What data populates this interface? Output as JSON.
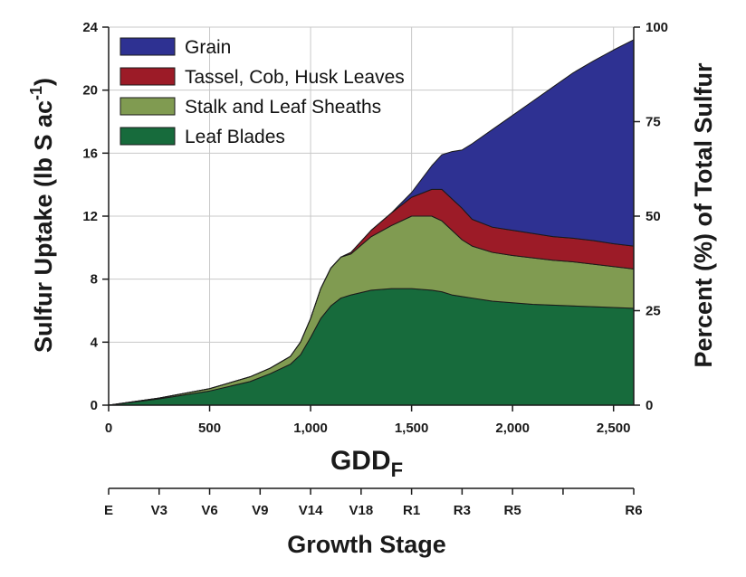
{
  "chart_data": {
    "type": "area",
    "stacked": true,
    "xlabel_main": "GDD",
    "xlabel_sub": "F",
    "ylabel_left_main": "Sulfur Uptake (lb S ac",
    "ylabel_left_sup": "-1",
    "ylabel_left_close": ")",
    "ylabel_right": "Percent (%) of Total Sulfur",
    "xlim": [
      0,
      2600
    ],
    "ylim_left": [
      0,
      24
    ],
    "ylim_right": [
      0,
      100
    ],
    "x_ticks": [
      0,
      500,
      1000,
      1500,
      2000,
      2500
    ],
    "x_tick_labels": [
      "0",
      "500",
      "1,000",
      "1,500",
      "2,000",
      "2,500"
    ],
    "y_left_ticks": [
      0,
      4,
      8,
      12,
      16,
      20,
      24
    ],
    "y_left_tick_labels": [
      "0",
      "4",
      "8",
      "12",
      "16",
      "20",
      "24"
    ],
    "y_right_ticks": [
      0,
      25,
      50,
      75,
      100
    ],
    "y_right_tick_labels": [
      "0",
      "25",
      "50",
      "75",
      "100"
    ],
    "growth_stage_title": "Growth Stage",
    "growth_stages": [
      {
        "label": "E",
        "gdd": 0
      },
      {
        "label": "V3",
        "gdd": 250
      },
      {
        "label": "V6",
        "gdd": 500
      },
      {
        "label": "V9",
        "gdd": 750
      },
      {
        "label": "V14",
        "gdd": 1000
      },
      {
        "label": "V18",
        "gdd": 1250
      },
      {
        "label": "R1",
        "gdd": 1500
      },
      {
        "label": "R3",
        "gdd": 1750
      },
      {
        "label": "R5",
        "gdd": 2000
      },
      {
        "label": "",
        "gdd": 2250
      },
      {
        "label": "R6",
        "gdd": 2600
      }
    ],
    "x": [
      0,
      250,
      500,
      700,
      800,
      900,
      950,
      1000,
      1050,
      1100,
      1150,
      1200,
      1300,
      1400,
      1500,
      1600,
      1650,
      1700,
      1750,
      1800,
      1900,
      2000,
      2100,
      2200,
      2300,
      2400,
      2500,
      2600
    ],
    "series": [
      {
        "name": "Leaf Blades",
        "color": "#176b3c",
        "values": [
          0,
          0.4,
          0.9,
          1.5,
          2.0,
          2.6,
          3.2,
          4.3,
          5.5,
          6.3,
          6.8,
          7.0,
          7.3,
          7.4,
          7.4,
          7.3,
          7.2,
          7.0,
          6.9,
          6.8,
          6.6,
          6.5,
          6.4,
          6.35,
          6.3,
          6.25,
          6.2,
          6.15
        ]
      },
      {
        "name": "Stalk and Leaf Sheaths",
        "color": "#809b51",
        "values": [
          0,
          0.05,
          0.15,
          0.3,
          0.35,
          0.5,
          0.8,
          1.2,
          1.9,
          2.4,
          2.6,
          2.6,
          3.4,
          4.0,
          4.6,
          4.7,
          4.5,
          4.1,
          3.6,
          3.3,
          3.1,
          3.0,
          2.95,
          2.85,
          2.8,
          2.7,
          2.6,
          2.5
        ]
      },
      {
        "name": "Tassel, Cob, Husk Leaves",
        "color": "#9c1b27",
        "values": [
          0,
          0,
          0,
          0,
          0,
          0,
          0,
          0,
          0,
          0,
          0,
          0.1,
          0.4,
          0.8,
          1.2,
          1.7,
          2.0,
          2.0,
          2.0,
          1.7,
          1.6,
          1.6,
          1.55,
          1.5,
          1.5,
          1.5,
          1.45,
          1.45
        ]
      },
      {
        "name": "Grain",
        "color": "#2e3192",
        "values": [
          0,
          0,
          0,
          0,
          0,
          0,
          0,
          0,
          0,
          0,
          0,
          0,
          0,
          0,
          0.3,
          1.5,
          2.2,
          3.0,
          3.7,
          4.8,
          6.2,
          7.3,
          8.4,
          9.5,
          10.5,
          11.4,
          12.3,
          13.1
        ]
      }
    ],
    "legend": [
      {
        "label": "Grain",
        "color": "#2e3192"
      },
      {
        "label": "Tassel, Cob, Husk Leaves",
        "color": "#9c1b27"
      },
      {
        "label": "Stalk and Leaf Sheaths",
        "color": "#809b51"
      },
      {
        "label": "Leaf Blades",
        "color": "#176b3c"
      }
    ],
    "legend_position": "top-left",
    "grid": true,
    "grid_color": "#c8c8c8"
  }
}
